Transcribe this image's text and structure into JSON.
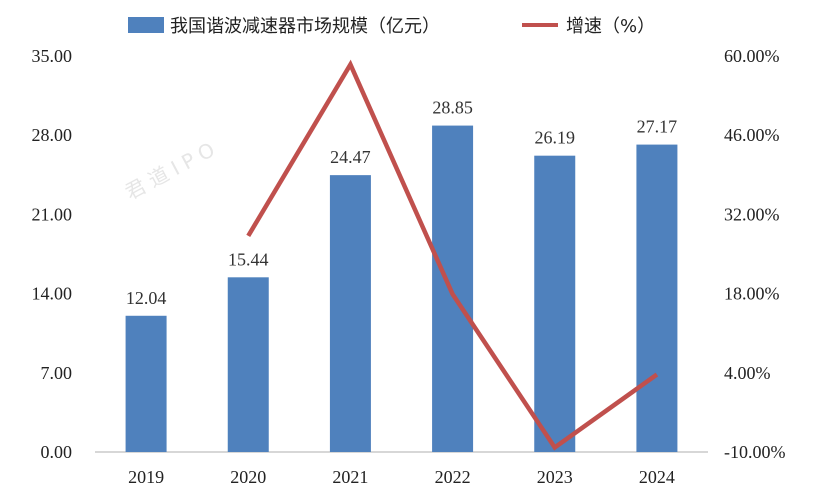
{
  "colors": {
    "bar": "#4F81BD",
    "line": "#C0504D",
    "axis": "#BFBFBF",
    "text": "#222222"
  },
  "watermark": {
    "text": "君道IPO"
  },
  "chart_data": {
    "type": "bar",
    "categories": [
      "2019",
      "2020",
      "2021",
      "2022",
      "2023",
      "2024"
    ],
    "series": [
      {
        "name": "我国谐波减速器市场规模（亿元）",
        "type": "bar",
        "axis": "left",
        "values": [
          12.04,
          15.44,
          24.47,
          28.85,
          26.19,
          27.17
        ],
        "labels": [
          "12.04",
          "15.44",
          "24.47",
          "28.85",
          "26.19",
          "27.17"
        ]
      },
      {
        "name": "增速（%）",
        "type": "line",
        "axis": "right",
        "values": [
          null,
          28.2,
          58.5,
          17.9,
          -9.2,
          3.7
        ]
      }
    ],
    "y_left": {
      "min": 0,
      "max": 35,
      "ticks": [
        "0.00",
        "7.00",
        "14.00",
        "21.00",
        "28.00",
        "35.00"
      ]
    },
    "y_right": {
      "min": -10,
      "max": 60,
      "ticks": [
        "-10.00%",
        "4.00%",
        "18.00%",
        "32.00%",
        "46.00%",
        "60.00%"
      ]
    },
    "legend": "top-center",
    "grid": false
  }
}
